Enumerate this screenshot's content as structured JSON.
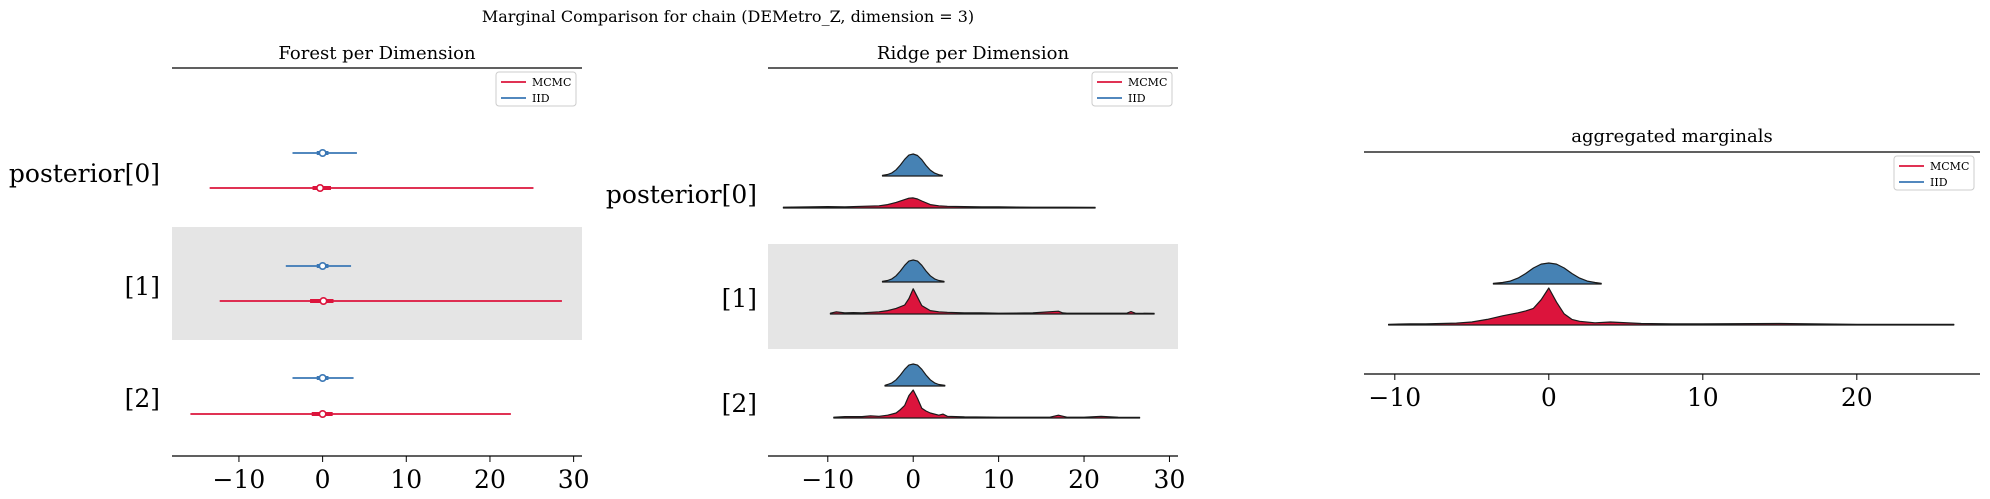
{
  "figure": {
    "suptitle": "Marginal Comparison for chain (DEMetro_Z, dimension = 3)"
  },
  "colors": {
    "mcmc": "#dc143c",
    "iid": "#3a77b5",
    "iid_fill": "#4682b4",
    "mcmc_fill": "#dc143c",
    "band": "#e5e5e5"
  },
  "chart_data": [
    {
      "type": "forest",
      "title": "Forest per Dimension",
      "xlim": [
        -18,
        31
      ],
      "xticks": [
        -10,
        0,
        10,
        20,
        30
      ],
      "xtick_labels": [
        "−10",
        "0",
        "10",
        "20",
        "30"
      ],
      "categories": [
        "posterior[0]",
        "[1]",
        "[2]"
      ],
      "legend": [
        "MCMC",
        "IID"
      ],
      "legend_loc": "upper right",
      "series": [
        {
          "name": "MCMC",
          "median": [
            -0.3,
            0.1,
            0.0
          ],
          "hdi_wide": [
            [
              -13.5,
              25.2
            ],
            [
              -12.3,
              28.6
            ],
            [
              -15.8,
              22.5
            ]
          ],
          "hdi_narrow": [
            [
              -1.2,
              1.0
            ],
            [
              -1.5,
              1.3
            ],
            [
              -1.3,
              1.2
            ]
          ]
        },
        {
          "name": "IID",
          "median": [
            0.0,
            0.0,
            0.0
          ],
          "hdi_wide": [
            [
              -3.6,
              4.1
            ],
            [
              -4.4,
              3.4
            ],
            [
              -3.6,
              3.7
            ]
          ],
          "hdi_narrow": [
            [
              -0.7,
              0.7
            ],
            [
              -0.7,
              0.7
            ],
            [
              -0.7,
              0.7
            ]
          ]
        }
      ]
    },
    {
      "type": "ridge",
      "title": "Ridge per Dimension",
      "xlim": [
        -17,
        31
      ],
      "xticks": [
        -10,
        0,
        10,
        20,
        30
      ],
      "xtick_labels": [
        "−10",
        "0",
        "10",
        "20",
        "30"
      ],
      "categories": [
        "posterior[0]",
        "[1]",
        "[2]"
      ],
      "legend": [
        "MCMC",
        "IID"
      ],
      "legend_loc": "upper right",
      "series": [
        {
          "name": "IID",
          "x": [
            [
              -3.6,
              -3.0,
              -2.5,
              -2.0,
              -1.5,
              -1.0,
              -0.5,
              0.0,
              0.5,
              1.0,
              1.5,
              2.0,
              2.5,
              3.0,
              3.4
            ],
            [
              -3.6,
              -3.0,
              -2.5,
              -2.0,
              -1.5,
              -1.0,
              -0.5,
              0.0,
              0.5,
              1.0,
              1.5,
              2.0,
              2.5,
              3.0,
              3.6
            ],
            [
              -3.3,
              -3.0,
              -2.5,
              -2.0,
              -1.5,
              -1.0,
              -0.5,
              0.0,
              0.5,
              1.0,
              1.5,
              2.0,
              2.5,
              3.0,
              3.7
            ]
          ],
          "density": [
            [
              0.03,
              0.07,
              0.14,
              0.28,
              0.5,
              0.76,
              0.95,
              1.0,
              0.93,
              0.74,
              0.48,
              0.27,
              0.13,
              0.06,
              0.03
            ],
            [
              0.03,
              0.07,
              0.14,
              0.28,
              0.5,
              0.76,
              0.95,
              1.0,
              0.95,
              0.76,
              0.5,
              0.28,
              0.14,
              0.07,
              0.03
            ],
            [
              0.03,
              0.07,
              0.14,
              0.28,
              0.5,
              0.76,
              0.95,
              1.0,
              0.95,
              0.76,
              0.5,
              0.28,
              0.14,
              0.07,
              0.03
            ]
          ]
        },
        {
          "name": "MCMC",
          "x": [
            [
              -15.2,
              -12,
              -10,
              -8,
              -6,
              -4,
              -3,
              -2,
              -1,
              -0.5,
              0,
              0.5,
              1,
              2,
              3,
              4,
              6,
              8,
              10,
              14,
              18,
              21.3
            ],
            [
              -9.7,
              -9,
              -8,
              -7,
              -6,
              -5,
              -4,
              -3,
              -2,
              -1,
              -0.5,
              0,
              0.5,
              1,
              2,
              3,
              4,
              6,
              8,
              10,
              14,
              17,
              17.5,
              18,
              22,
              25,
              25.5,
              26,
              28.2
            ],
            [
              -9.3,
              -8,
              -6,
              -5,
              -4,
              -3,
              -2,
              -1.5,
              -1,
              -0.5,
              0,
              0.5,
              1,
              1.5,
              2,
              3,
              3.5,
              4,
              6,
              10,
              16,
              17,
              18,
              20,
              22,
              24,
              26.5
            ]
          ],
          "density": [
            [
              0.03,
              0.04,
              0.05,
              0.04,
              0.06,
              0.08,
              0.12,
              0.2,
              0.3,
              0.35,
              0.36,
              0.32,
              0.25,
              0.12,
              0.08,
              0.06,
              0.05,
              0.04,
              0.04,
              0.03,
              0.03,
              0.02
            ],
            [
              0.03,
              0.08,
              0.04,
              0.05,
              0.04,
              0.06,
              0.08,
              0.12,
              0.2,
              0.32,
              0.55,
              0.9,
              0.6,
              0.3,
              0.12,
              0.08,
              0.06,
              0.04,
              0.04,
              0.03,
              0.04,
              0.1,
              0.04,
              0.03,
              0.03,
              0.03,
              0.09,
              0.03,
              0.02
            ],
            [
              0.03,
              0.05,
              0.05,
              0.08,
              0.06,
              0.1,
              0.18,
              0.3,
              0.45,
              0.8,
              1.0,
              0.7,
              0.35,
              0.25,
              0.18,
              0.1,
              0.14,
              0.06,
              0.04,
              0.03,
              0.03,
              0.1,
              0.03,
              0.03,
              0.06,
              0.03,
              0.02
            ]
          ]
        }
      ]
    },
    {
      "type": "area",
      "title": "aggregated marginals",
      "xlim": [
        -12,
        28
      ],
      "xticks": [
        -10,
        0,
        10,
        20
      ],
      "xtick_labels": [
        "−10",
        "0",
        "10",
        "20"
      ],
      "legend": [
        "MCMC",
        "IID"
      ],
      "legend_loc": "upper right",
      "series": [
        {
          "name": "IID",
          "x": [
            -3.6,
            -3.0,
            -2.5,
            -2.0,
            -1.5,
            -1.0,
            -0.5,
            0.0,
            0.5,
            1.0,
            1.5,
            2.0,
            2.5,
            3.0,
            3.4
          ],
          "density": [
            0.03,
            0.07,
            0.14,
            0.28,
            0.5,
            0.76,
            0.95,
            1.0,
            0.95,
            0.76,
            0.5,
            0.28,
            0.14,
            0.07,
            0.03
          ]
        },
        {
          "name": "MCMC",
          "x": [
            -10.4,
            -9,
            -8,
            -7,
            -6,
            -5,
            -4,
            -3,
            -2,
            -1.5,
            -1,
            -0.5,
            0,
            0.5,
            1,
            1.5,
            2,
            3,
            4,
            6,
            8,
            10,
            15,
            20,
            26.3
          ],
          "density": [
            0.02,
            0.03,
            0.03,
            0.04,
            0.05,
            0.08,
            0.15,
            0.25,
            0.33,
            0.38,
            0.45,
            0.68,
            1.0,
            0.62,
            0.3,
            0.15,
            0.1,
            0.06,
            0.08,
            0.04,
            0.03,
            0.03,
            0.04,
            0.02,
            0.02
          ]
        }
      ]
    }
  ]
}
